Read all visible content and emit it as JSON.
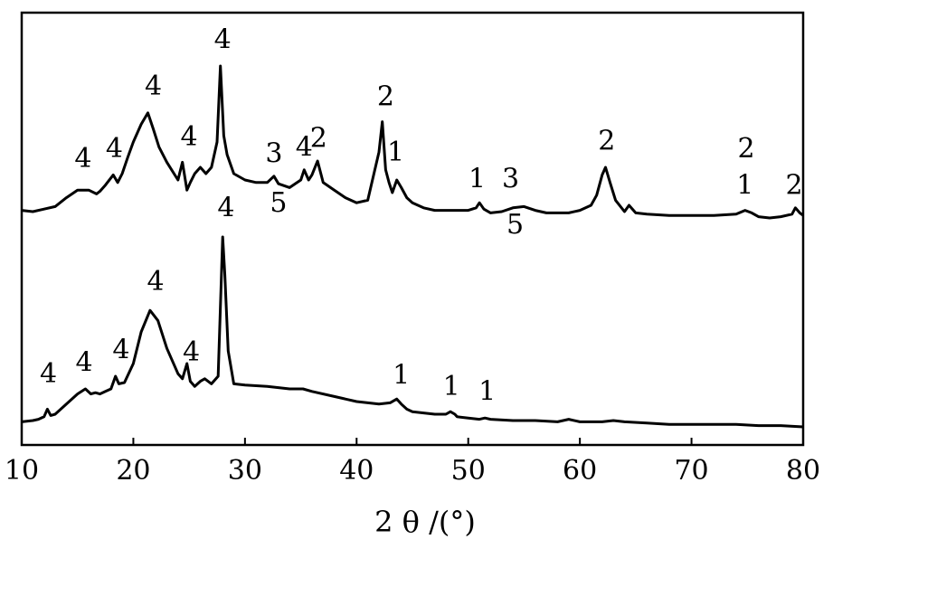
{
  "chart_data": {
    "type": "line",
    "xlabel": "2 θ /(°)",
    "xlim": [
      10,
      80
    ],
    "xticks": [
      10,
      20,
      30,
      40,
      50,
      60,
      70,
      80
    ],
    "ylabel": "",
    "grid": false,
    "series": [
      {
        "x": [
          10,
          11,
          12,
          13,
          14,
          15,
          16,
          16.7,
          17,
          17.5,
          18.2,
          18.6,
          19,
          19.5,
          20,
          20.7,
          21.3,
          21.8,
          22.3,
          23,
          24,
          24.4,
          24.8,
          25.1,
          25.5,
          26,
          26.5,
          27,
          27.5,
          27.8,
          28.1,
          28.4,
          29,
          30,
          31,
          32,
          32.6,
          33,
          34,
          35,
          35.3,
          35.7,
          36,
          36.5,
          37,
          38,
          39,
          40,
          41,
          42,
          42.3,
          42.6,
          42.9,
          43.2,
          43.6,
          44,
          44.5,
          45,
          46,
          47,
          48,
          49,
          50,
          50.7,
          51,
          51.4,
          52,
          53,
          54,
          55,
          56,
          57,
          58,
          59,
          60,
          61,
          61.5,
          62,
          62.3,
          62.7,
          63.2,
          64,
          64.4,
          65,
          66,
          68,
          70,
          72,
          74,
          74.8,
          75.4,
          76,
          77,
          78,
          79,
          79.3,
          79.7,
          80
        ],
        "y": [
          6,
          5,
          7,
          9,
          16,
          22,
          22,
          19,
          21,
          26,
          34,
          28,
          35,
          48,
          60,
          74,
          83,
          70,
          56,
          44,
          30,
          44,
          22,
          28,
          35,
          40,
          35,
          40,
          60,
          120,
          65,
          50,
          35,
          30,
          28,
          28,
          33,
          27,
          24,
          30,
          38,
          30,
          34,
          45,
          28,
          22,
          16,
          12,
          14,
          52,
          76,
          38,
          28,
          20,
          30,
          24,
          16,
          12,
          8,
          6,
          6,
          6,
          6,
          8,
          12,
          7,
          4,
          5,
          8,
          9,
          6,
          4,
          4,
          4,
          6,
          10,
          18,
          34,
          40,
          28,
          14,
          5,
          10,
          4,
          3,
          2,
          2,
          2,
          3,
          6,
          4,
          1,
          0,
          1,
          3,
          8,
          4,
          2
        ]
      },
      {
        "x": [
          10,
          11,
          11.5,
          12,
          12.3,
          12.6,
          13,
          14,
          15,
          15.7,
          16.2,
          16.6,
          17,
          17.5,
          18,
          18.4,
          18.7,
          19.2,
          20,
          20.7,
          21.5,
          22.2,
          23,
          24,
          24.4,
          24.8,
          25.1,
          25.5,
          26,
          26.4,
          27,
          27.6,
          28,
          28.2,
          28.5,
          29,
          30,
          32,
          34,
          35.2,
          36,
          38,
          40,
          42,
          43,
          43.6,
          44,
          44.5,
          45,
          46,
          47,
          48,
          48.4,
          48.8,
          49,
          50,
          51,
          51.5,
          52,
          54,
          56,
          58,
          59,
          60,
          62,
          63,
          64,
          66,
          68,
          70,
          72,
          74,
          76,
          78,
          80
        ],
        "y": [
          4,
          5,
          6,
          8,
          14,
          9,
          10,
          18,
          26,
          30,
          26,
          27,
          26,
          28,
          30,
          40,
          34,
          35,
          50,
          75,
          92,
          84,
          62,
          42,
          38,
          50,
          36,
          32,
          36,
          38,
          34,
          40,
          150,
          120,
          60,
          34,
          33,
          32,
          30,
          30,
          28,
          24,
          20,
          18,
          19,
          22,
          18,
          14,
          12,
          11,
          10,
          10,
          12,
          10,
          8,
          7,
          6,
          7,
          6,
          5,
          5,
          4,
          6,
          4,
          4,
          5,
          4,
          3,
          2,
          2,
          2,
          2,
          1,
          1,
          0
        ]
      }
    ],
    "annotations": [
      {
        "series": 0,
        "text": "4",
        "x": 15.5,
        "y": 40
      },
      {
        "series": 0,
        "text": "4",
        "x": 18.3,
        "y": 48
      },
      {
        "series": 0,
        "text": "4",
        "x": 21.8,
        "y": 97
      },
      {
        "series": 0,
        "text": "4",
        "x": 25.0,
        "y": 57
      },
      {
        "series": 0,
        "text": "4",
        "x": 28.0,
        "y": 134
      },
      {
        "series": 0,
        "text": "3",
        "x": 32.6,
        "y": 44
      },
      {
        "series": 0,
        "text": "5",
        "x": 33.0,
        "y": 5
      },
      {
        "series": 0,
        "text": "4",
        "x": 35.3,
        "y": 49
      },
      {
        "series": 0,
        "text": "2",
        "x": 36.6,
        "y": 56
      },
      {
        "series": 0,
        "text": "2",
        "x": 42.6,
        "y": 89
      },
      {
        "series": 0,
        "text": "1",
        "x": 43.5,
        "y": 45
      },
      {
        "series": 0,
        "text": "1",
        "x": 50.8,
        "y": 24
      },
      {
        "series": 0,
        "text": "3",
        "x": 53.8,
        "y": 24
      },
      {
        "series": 0,
        "text": "5",
        "x": 54.2,
        "y": -12
      },
      {
        "series": 0,
        "text": "2",
        "x": 62.4,
        "y": 54
      },
      {
        "series": 0,
        "text": "2",
        "x": 74.9,
        "y": 48
      },
      {
        "series": 0,
        "text": "1",
        "x": 74.8,
        "y": 19
      },
      {
        "series": 0,
        "text": "2",
        "x": 79.2,
        "y": 19
      },
      {
        "series": 1,
        "text": "4",
        "x": 12.4,
        "y": 35
      },
      {
        "series": 1,
        "text": "4",
        "x": 15.6,
        "y": 44
      },
      {
        "series": 1,
        "text": "4",
        "x": 18.9,
        "y": 54
      },
      {
        "series": 1,
        "text": "4",
        "x": 22.0,
        "y": 108
      },
      {
        "series": 1,
        "text": "4",
        "x": 25.2,
        "y": 52
      },
      {
        "series": 1,
        "text": "4",
        "x": 28.3,
        "y": 166
      },
      {
        "series": 1,
        "text": "1",
        "x": 44.0,
        "y": 34
      },
      {
        "series": 1,
        "text": "1",
        "x": 48.5,
        "y": 25
      },
      {
        "series": 1,
        "text": "1",
        "x": 51.7,
        "y": 21
      }
    ]
  }
}
